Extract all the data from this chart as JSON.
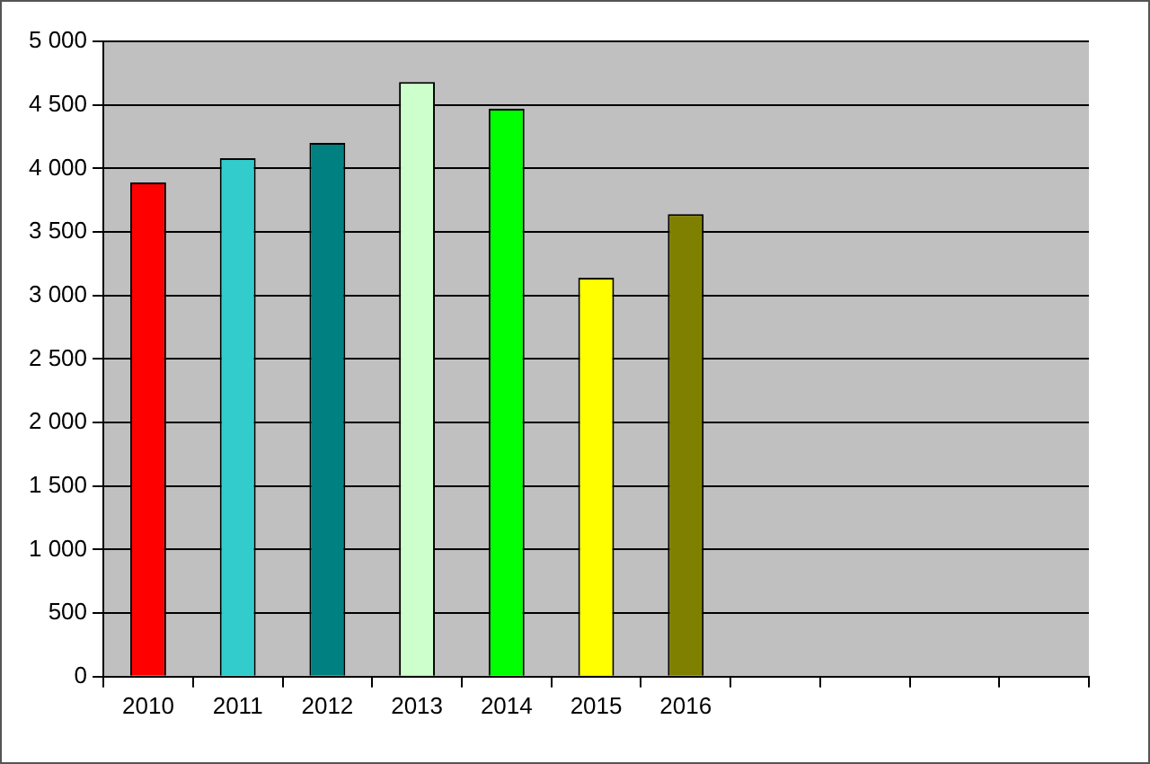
{
  "chart_data": {
    "type": "bar",
    "categories": [
      "2010",
      "2011",
      "2012",
      "2013",
      "2014",
      "2015",
      "2016",
      null,
      null,
      null,
      null
    ],
    "values": [
      3890,
      4080,
      4200,
      4680,
      4470,
      3140,
      3640,
      null,
      null,
      null,
      null
    ],
    "colors": [
      "#ff0000",
      "#33cccc",
      "#008080",
      "#ccffcc",
      "#00ff00",
      "#ffff00",
      "#808000",
      null,
      null,
      null,
      null
    ],
    "ylim": [
      0,
      5000
    ],
    "yticks": [
      0,
      500,
      {
        "value": 1000,
        "label": "1 000"
      },
      {
        "value": 1500,
        "label": "1 500"
      },
      {
        "value": 2000,
        "label": "2 000"
      },
      {
        "value": 2500,
        "label": "2 500"
      },
      {
        "value": 3000,
        "label": "3 000"
      },
      {
        "value": 3500,
        "label": "3 500"
      },
      {
        "value": 4000,
        "label": "4 000"
      },
      {
        "value": 4500,
        "label": "4 500"
      },
      {
        "value": 5000,
        "label": "5 000"
      }
    ],
    "grid": "y",
    "legend": false
  }
}
